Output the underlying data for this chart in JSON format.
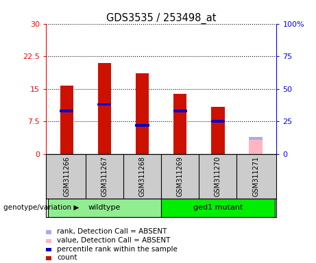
{
  "title": "GDS3535 / 253498_at",
  "samples": [
    "GSM311266",
    "GSM311267",
    "GSM311268",
    "GSM311269",
    "GSM311270",
    "GSM311271"
  ],
  "count_values": [
    15.7,
    21.0,
    18.5,
    13.8,
    10.8,
    null
  ],
  "rank_values": [
    33,
    38,
    22,
    33,
    25,
    null
  ],
  "absent_value": 3.5,
  "absent_rank": 12,
  "ylim_left": [
    0,
    30
  ],
  "ylim_right": [
    0,
    100
  ],
  "yticks_left": [
    0,
    7.5,
    15,
    22.5,
    30
  ],
  "yticks_right": [
    0,
    25,
    50,
    75,
    100
  ],
  "ytick_labels_left": [
    "0",
    "7.5",
    "15",
    "22.5",
    "30"
  ],
  "ytick_labels_right": [
    "0",
    "25",
    "50",
    "75",
    "100%"
  ],
  "groups": [
    {
      "label": "wildtype",
      "samples": [
        0,
        1,
        2
      ],
      "color": "#90EE90"
    },
    {
      "label": "ged1 mutant",
      "samples": [
        3,
        4,
        5
      ],
      "color": "#00EE00"
    }
  ],
  "group_label": "genotype/variation",
  "bar_width": 0.35,
  "count_color": "#CC1100",
  "rank_color": "#0000CC",
  "absent_bar_color": "#FFB6C1",
  "absent_rank_color": "#AAAAEE",
  "bg_plot": "#FFFFFF",
  "bg_sample": "#CCCCCC",
  "legend_items": [
    {
      "color": "#CC1100",
      "label": "count"
    },
    {
      "color": "#0000CC",
      "label": "percentile rank within the sample"
    },
    {
      "color": "#FFB6C1",
      "label": "value, Detection Call = ABSENT"
    },
    {
      "color": "#AAAAEE",
      "label": "rank, Detection Call = ABSENT"
    }
  ]
}
